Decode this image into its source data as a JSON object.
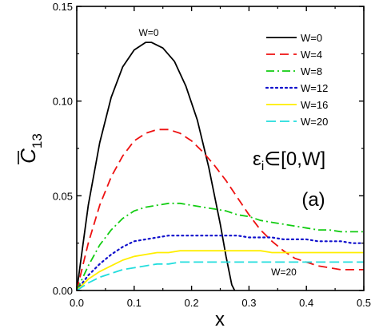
{
  "chart_data": {
    "type": "line",
    "xlabel": "x",
    "ylabel": "C",
    "ylabel_sub": "13",
    "xlim": [
      0,
      0.5
    ],
    "ylim": [
      0,
      0.15
    ],
    "xticks": [
      "0.0",
      "0.1",
      "0.2",
      "0.3",
      "0.4",
      "0.5"
    ],
    "yticks": [
      "0.00",
      "0.05",
      "0.10",
      "0.15"
    ],
    "x_tick_values": [
      0,
      0.1,
      0.2,
      0.3,
      0.4,
      0.5
    ],
    "y_tick_values": [
      0,
      0.05,
      0.1,
      0.15
    ],
    "grid": false,
    "legend_position": "top-right",
    "annotations": {
      "peak_label": "W=0",
      "bottom_label": "W=20",
      "epsilon_label": "ε",
      "epsilon_sub": "i",
      "epsilon_rest": "∈[0,W]",
      "panel_label": "(a)"
    },
    "series": [
      {
        "name": "W=0",
        "color": "#000000",
        "dash": "solid",
        "points": [
          [
            0.0,
            0.0
          ],
          [
            0.02,
            0.045
          ],
          [
            0.04,
            0.078
          ],
          [
            0.06,
            0.102
          ],
          [
            0.08,
            0.118
          ],
          [
            0.1,
            0.127
          ],
          [
            0.12,
            0.131
          ],
          [
            0.13,
            0.131
          ],
          [
            0.15,
            0.128
          ],
          [
            0.17,
            0.121
          ],
          [
            0.19,
            0.108
          ],
          [
            0.21,
            0.09
          ],
          [
            0.23,
            0.065
          ],
          [
            0.25,
            0.035
          ],
          [
            0.26,
            0.018
          ],
          [
            0.27,
            0.003
          ],
          [
            0.275,
            0.0
          ]
        ]
      },
      {
        "name": "W=4",
        "color": "#ee1111",
        "dash": "dashed",
        "points": [
          [
            0.0,
            0.0
          ],
          [
            0.02,
            0.025
          ],
          [
            0.04,
            0.045
          ],
          [
            0.06,
            0.06
          ],
          [
            0.08,
            0.071
          ],
          [
            0.1,
            0.079
          ],
          [
            0.12,
            0.083
          ],
          [
            0.14,
            0.085
          ],
          [
            0.16,
            0.085
          ],
          [
            0.18,
            0.083
          ],
          [
            0.2,
            0.079
          ],
          [
            0.22,
            0.073
          ],
          [
            0.24,
            0.066
          ],
          [
            0.26,
            0.058
          ],
          [
            0.28,
            0.049
          ],
          [
            0.3,
            0.04
          ],
          [
            0.32,
            0.032
          ],
          [
            0.34,
            0.026
          ],
          [
            0.36,
            0.021
          ],
          [
            0.38,
            0.017
          ],
          [
            0.4,
            0.015
          ],
          [
            0.42,
            0.013
          ],
          [
            0.44,
            0.012
          ],
          [
            0.46,
            0.011
          ],
          [
            0.48,
            0.011
          ],
          [
            0.5,
            0.011
          ]
        ]
      },
      {
        "name": "W=8",
        "color": "#11cc11",
        "dash": "dashdot",
        "points": [
          [
            0.0,
            0.0
          ],
          [
            0.02,
            0.013
          ],
          [
            0.04,
            0.024
          ],
          [
            0.06,
            0.032
          ],
          [
            0.08,
            0.038
          ],
          [
            0.1,
            0.042
          ],
          [
            0.12,
            0.044
          ],
          [
            0.14,
            0.045
          ],
          [
            0.16,
            0.046
          ],
          [
            0.18,
            0.046
          ],
          [
            0.2,
            0.045
          ],
          [
            0.22,
            0.044
          ],
          [
            0.24,
            0.043
          ],
          [
            0.26,
            0.042
          ],
          [
            0.28,
            0.04
          ],
          [
            0.3,
            0.039
          ],
          [
            0.32,
            0.037
          ],
          [
            0.34,
            0.036
          ],
          [
            0.36,
            0.035
          ],
          [
            0.38,
            0.034
          ],
          [
            0.4,
            0.033
          ],
          [
            0.42,
            0.032
          ],
          [
            0.44,
            0.032
          ],
          [
            0.46,
            0.031
          ],
          [
            0.48,
            0.031
          ],
          [
            0.5,
            0.031
          ]
        ]
      },
      {
        "name": "W=12",
        "color": "#1111cc",
        "dash": "dotted",
        "points": [
          [
            0.0,
            0.0
          ],
          [
            0.02,
            0.008
          ],
          [
            0.04,
            0.014
          ],
          [
            0.06,
            0.019
          ],
          [
            0.08,
            0.023
          ],
          [
            0.1,
            0.026
          ],
          [
            0.12,
            0.027
          ],
          [
            0.14,
            0.028
          ],
          [
            0.16,
            0.029
          ],
          [
            0.18,
            0.029
          ],
          [
            0.2,
            0.029
          ],
          [
            0.22,
            0.029
          ],
          [
            0.24,
            0.029
          ],
          [
            0.26,
            0.029
          ],
          [
            0.28,
            0.029
          ],
          [
            0.3,
            0.028
          ],
          [
            0.32,
            0.028
          ],
          [
            0.34,
            0.028
          ],
          [
            0.36,
            0.027
          ],
          [
            0.38,
            0.027
          ],
          [
            0.4,
            0.027
          ],
          [
            0.42,
            0.026
          ],
          [
            0.44,
            0.026
          ],
          [
            0.46,
            0.026
          ],
          [
            0.48,
            0.025
          ],
          [
            0.5,
            0.025
          ]
        ]
      },
      {
        "name": "W=16",
        "color": "#ffee00",
        "dash": "solid",
        "points": [
          [
            0.0,
            0.0
          ],
          [
            0.02,
            0.006
          ],
          [
            0.04,
            0.01
          ],
          [
            0.06,
            0.013
          ],
          [
            0.08,
            0.016
          ],
          [
            0.1,
            0.018
          ],
          [
            0.12,
            0.019
          ],
          [
            0.14,
            0.02
          ],
          [
            0.16,
            0.02
          ],
          [
            0.18,
            0.021
          ],
          [
            0.2,
            0.021
          ],
          [
            0.22,
            0.021
          ],
          [
            0.24,
            0.021
          ],
          [
            0.26,
            0.021
          ],
          [
            0.28,
            0.021
          ],
          [
            0.3,
            0.021
          ],
          [
            0.32,
            0.021
          ],
          [
            0.34,
            0.02
          ],
          [
            0.36,
            0.02
          ],
          [
            0.38,
            0.02
          ],
          [
            0.4,
            0.02
          ],
          [
            0.42,
            0.02
          ],
          [
            0.44,
            0.02
          ],
          [
            0.46,
            0.02
          ],
          [
            0.48,
            0.02
          ],
          [
            0.5,
            0.02
          ]
        ]
      },
      {
        "name": "W=20",
        "color": "#22dddd",
        "dash": "longdash",
        "points": [
          [
            0.0,
            0.0
          ],
          [
            0.02,
            0.004
          ],
          [
            0.04,
            0.007
          ],
          [
            0.06,
            0.009
          ],
          [
            0.08,
            0.011
          ],
          [
            0.1,
            0.012
          ],
          [
            0.12,
            0.013
          ],
          [
            0.14,
            0.014
          ],
          [
            0.16,
            0.014
          ],
          [
            0.18,
            0.015
          ],
          [
            0.2,
            0.015
          ],
          [
            0.22,
            0.015
          ],
          [
            0.24,
            0.015
          ],
          [
            0.26,
            0.015
          ],
          [
            0.28,
            0.015
          ],
          [
            0.3,
            0.015
          ],
          [
            0.32,
            0.015
          ],
          [
            0.34,
            0.015
          ],
          [
            0.36,
            0.015
          ],
          [
            0.38,
            0.015
          ],
          [
            0.4,
            0.015
          ],
          [
            0.42,
            0.015
          ],
          [
            0.44,
            0.015
          ],
          [
            0.46,
            0.015
          ],
          [
            0.48,
            0.015
          ],
          [
            0.5,
            0.015
          ]
        ]
      }
    ]
  }
}
